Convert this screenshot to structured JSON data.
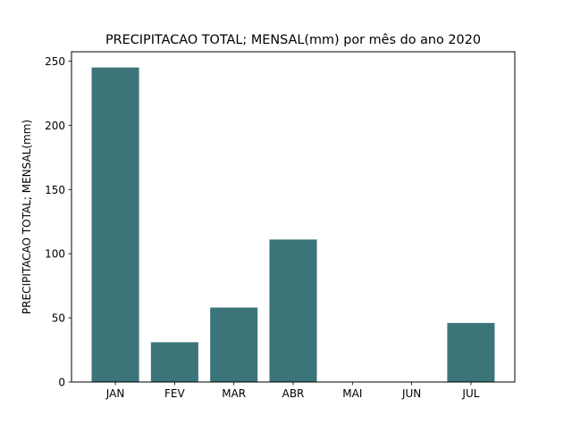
{
  "chart_data": {
    "type": "bar",
    "title": "PRECIPITACAO TOTAL; MENSAL(mm) por mês do ano 2020",
    "xlabel": "",
    "ylabel": "PRECIPITACAO TOTAL; MENSAL(mm)",
    "categories": [
      "JAN",
      "FEV",
      "MAR",
      "ABR",
      "MAI",
      "JUN",
      "JUL"
    ],
    "values": [
      245,
      31,
      58,
      111,
      0,
      0,
      46
    ],
    "ylim": [
      0,
      257.25
    ],
    "yticks": [
      0,
      50,
      100,
      150,
      200,
      250
    ],
    "grid": false,
    "bar_color": "#3b7579"
  }
}
